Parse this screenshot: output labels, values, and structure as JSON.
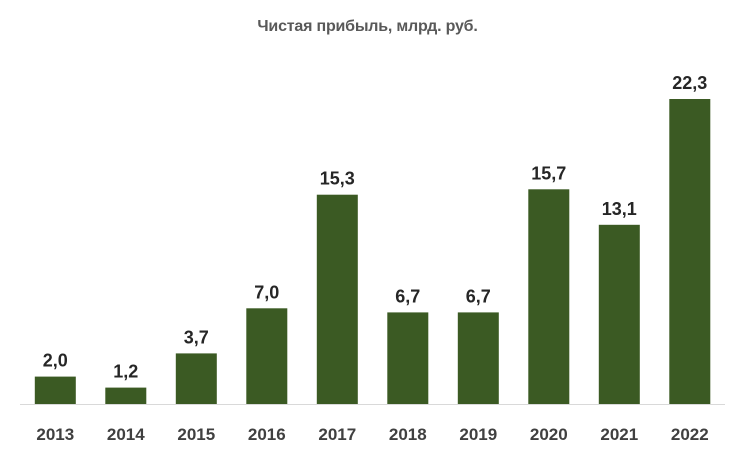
{
  "chart_data": {
    "type": "bar",
    "title": "Чистая прибыль, млрд. руб.",
    "categories": [
      "2013",
      "2014",
      "2015",
      "2016",
      "2017",
      "2018",
      "2019",
      "2020",
      "2021",
      "2022"
    ],
    "values": [
      2.0,
      1.2,
      3.7,
      7.0,
      15.3,
      6.7,
      6.7,
      15.7,
      13.1,
      22.3
    ],
    "value_labels": [
      "2,0",
      "1,2",
      "3,7",
      "7,0",
      "15,3",
      "6,7",
      "6,7",
      "15,7",
      "13,1",
      "22,3"
    ],
    "xlabel": "",
    "ylabel": "",
    "ylim": [
      0,
      22.3
    ],
    "grid": false,
    "legend": "none",
    "bar_color": "#3b5a23",
    "axis_color": "#d9d9d9"
  }
}
